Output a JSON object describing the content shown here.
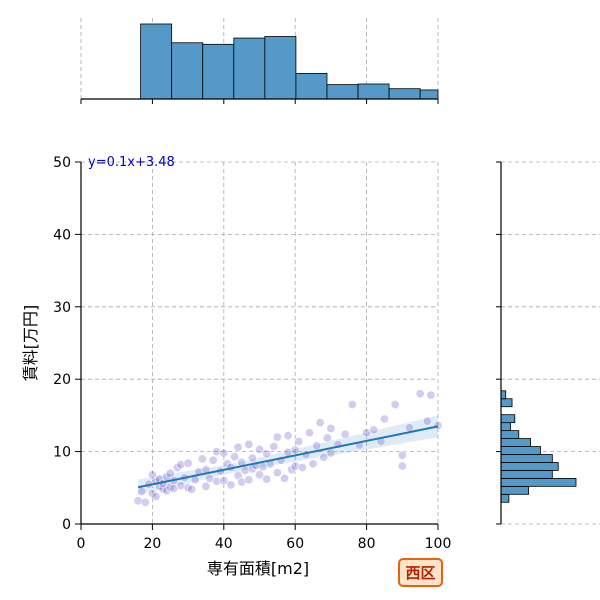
{
  "chart_data": {
    "type": "scatter",
    "xlabel": "専有面積[m2]",
    "ylabel": "賃料[万円]",
    "xlim": [
      0,
      100
    ],
    "ylim": [
      0,
      50
    ],
    "xticks": [
      0,
      20,
      40,
      60,
      80,
      100
    ],
    "yticks": [
      0,
      10,
      20,
      30,
      40,
      50
    ],
    "grid": true,
    "annotation": "y=0.1x+3.48",
    "badge": "西区",
    "colors": {
      "points": "#6a5acd",
      "fit_line": "#1f77b4",
      "hist_fill": "#5499c7",
      "grid": "#aaaaaa",
      "badge_fill": "#ffe4cc",
      "badge_border": "#e8620a"
    },
    "regression": {
      "slope": 0.1,
      "intercept": 3.48,
      "x_range": [
        16,
        100
      ]
    },
    "points": [
      [
        16,
        3.2
      ],
      [
        17,
        4.5
      ],
      [
        18,
        3.0
      ],
      [
        19,
        5.5
      ],
      [
        20,
        4.2
      ],
      [
        20,
        6.8
      ],
      [
        21,
        5.9
      ],
      [
        21,
        3.8
      ],
      [
        22,
        5.2
      ],
      [
        22,
        6.2
      ],
      [
        23,
        4.8
      ],
      [
        23,
        5.6
      ],
      [
        24,
        6.5
      ],
      [
        24,
        4.6
      ],
      [
        25,
        5.1
      ],
      [
        25,
        7.0
      ],
      [
        26,
        6.0
      ],
      [
        26,
        4.9
      ],
      [
        27,
        7.8
      ],
      [
        28,
        5.3
      ],
      [
        28,
        8.2
      ],
      [
        29,
        6.4
      ],
      [
        30,
        8.4
      ],
      [
        30,
        5.0
      ],
      [
        31,
        4.8
      ],
      [
        32,
        6.1
      ],
      [
        33,
        7.2
      ],
      [
        34,
        9.0
      ],
      [
        35,
        5.2
      ],
      [
        35,
        7.5
      ],
      [
        36,
        6.3
      ],
      [
        37,
        8.8
      ],
      [
        38,
        5.9
      ],
      [
        38,
        10.0
      ],
      [
        39,
        7.3
      ],
      [
        40,
        6.0
      ],
      [
        40,
        9.8
      ],
      [
        41,
        8.3
      ],
      [
        42,
        5.4
      ],
      [
        42,
        7.8
      ],
      [
        43,
        9.3
      ],
      [
        44,
        6.7
      ],
      [
        44,
        10.6
      ],
      [
        45,
        8.5
      ],
      [
        45,
        5.8
      ],
      [
        46,
        7.4
      ],
      [
        47,
        11.0
      ],
      [
        47,
        6.1
      ],
      [
        48,
        9.1
      ],
      [
        48,
        7.6
      ],
      [
        49,
        8.1
      ],
      [
        50,
        6.8
      ],
      [
        50,
        10.3
      ],
      [
        51,
        7.9
      ],
      [
        52,
        9.7
      ],
      [
        52,
        6.2
      ],
      [
        53,
        8.3
      ],
      [
        54,
        10.7
      ],
      [
        55,
        7.1
      ],
      [
        55,
        12.0
      ],
      [
        56,
        8.8
      ],
      [
        57,
        6.3
      ],
      [
        58,
        9.9
      ],
      [
        58,
        12.2
      ],
      [
        59,
        7.5
      ],
      [
        60,
        10.2
      ],
      [
        60,
        8.0
      ],
      [
        61,
        11.4
      ],
      [
        62,
        7.8
      ],
      [
        63,
        9.6
      ],
      [
        64,
        12.6
      ],
      [
        65,
        8.3
      ],
      [
        66,
        10.8
      ],
      [
        67,
        14.0
      ],
      [
        68,
        9.2
      ],
      [
        69,
        11.9
      ],
      [
        70,
        9.8
      ],
      [
        70,
        13.2
      ],
      [
        72,
        11.0
      ],
      [
        74,
        12.4
      ],
      [
        76,
        16.5
      ],
      [
        78,
        10.9
      ],
      [
        80,
        12.6
      ],
      [
        82,
        13.0
      ],
      [
        84,
        11.4
      ],
      [
        85,
        14.5
      ],
      [
        88,
        16.5
      ],
      [
        90,
        8.0
      ],
      [
        90,
        9.5
      ],
      [
        92,
        13.3
      ],
      [
        95,
        18.0
      ],
      [
        97,
        14.2
      ],
      [
        98,
        17.8
      ],
      [
        100,
        13.6
      ]
    ],
    "x_histogram": {
      "bin_edges": [
        16.7,
        25.4,
        34.1,
        42.8,
        51.5,
        60.2,
        68.9,
        77.6,
        86.3,
        95.0,
        103.7
      ],
      "counts": [
        24,
        18,
        17.5,
        19.5,
        20,
        8.2,
        4.6,
        4.8,
        3.3,
        2.9
      ]
    },
    "y_histogram": {
      "bin_edges": [
        3.0,
        4.1,
        5.2,
        6.3,
        7.4,
        8.5,
        9.6,
        10.7,
        11.8,
        12.9,
        14.0,
        15.1,
        16.2,
        17.3,
        18.4
      ],
      "counts": [
        2,
        7,
        19,
        13,
        14.5,
        13,
        10,
        7.5,
        4.5,
        2.4,
        3.5,
        0,
        2.8,
        1.2
      ]
    }
  }
}
